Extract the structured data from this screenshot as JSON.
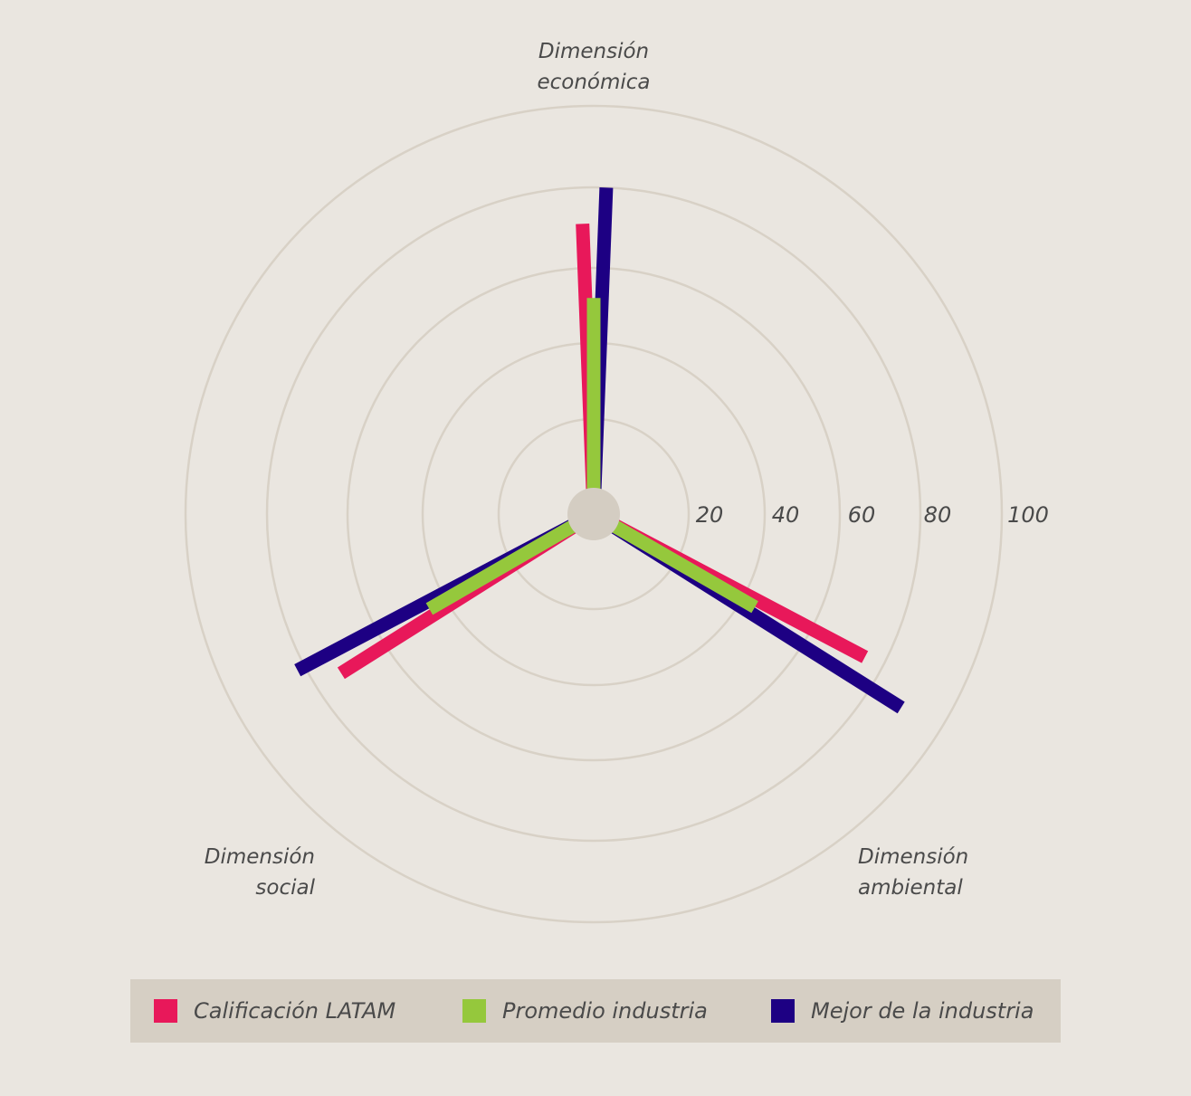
{
  "colors": {
    "background": "#eae6e0",
    "grid": "#d8d1c6",
    "center": "#d4cdc2",
    "text": "#4a4a4a"
  },
  "chart_data": {
    "type": "radial-bar",
    "axes": [
      {
        "line1": "Dimensión",
        "line2": "económica"
      },
      {
        "line1": "Dimensión",
        "line2": "ambiental"
      },
      {
        "line1": "Dimensión",
        "line2": "social"
      }
    ],
    "rlim": [
      0,
      100
    ],
    "ticks": [
      "20",
      "40",
      "60",
      "80",
      "100"
    ],
    "grid": true,
    "legend_position": "bottom",
    "series": [
      {
        "name": "Calificación LATAM",
        "color": "#e8185a",
        "values": [
          71,
          75,
          73
        ]
      },
      {
        "name": "Promedio industria",
        "color": "#95c83c",
        "values": [
          52,
          44,
          45
        ]
      },
      {
        "name": "Mejor de la industria",
        "color": "#1d0083",
        "values": [
          80,
          89,
          82
        ]
      }
    ]
  }
}
